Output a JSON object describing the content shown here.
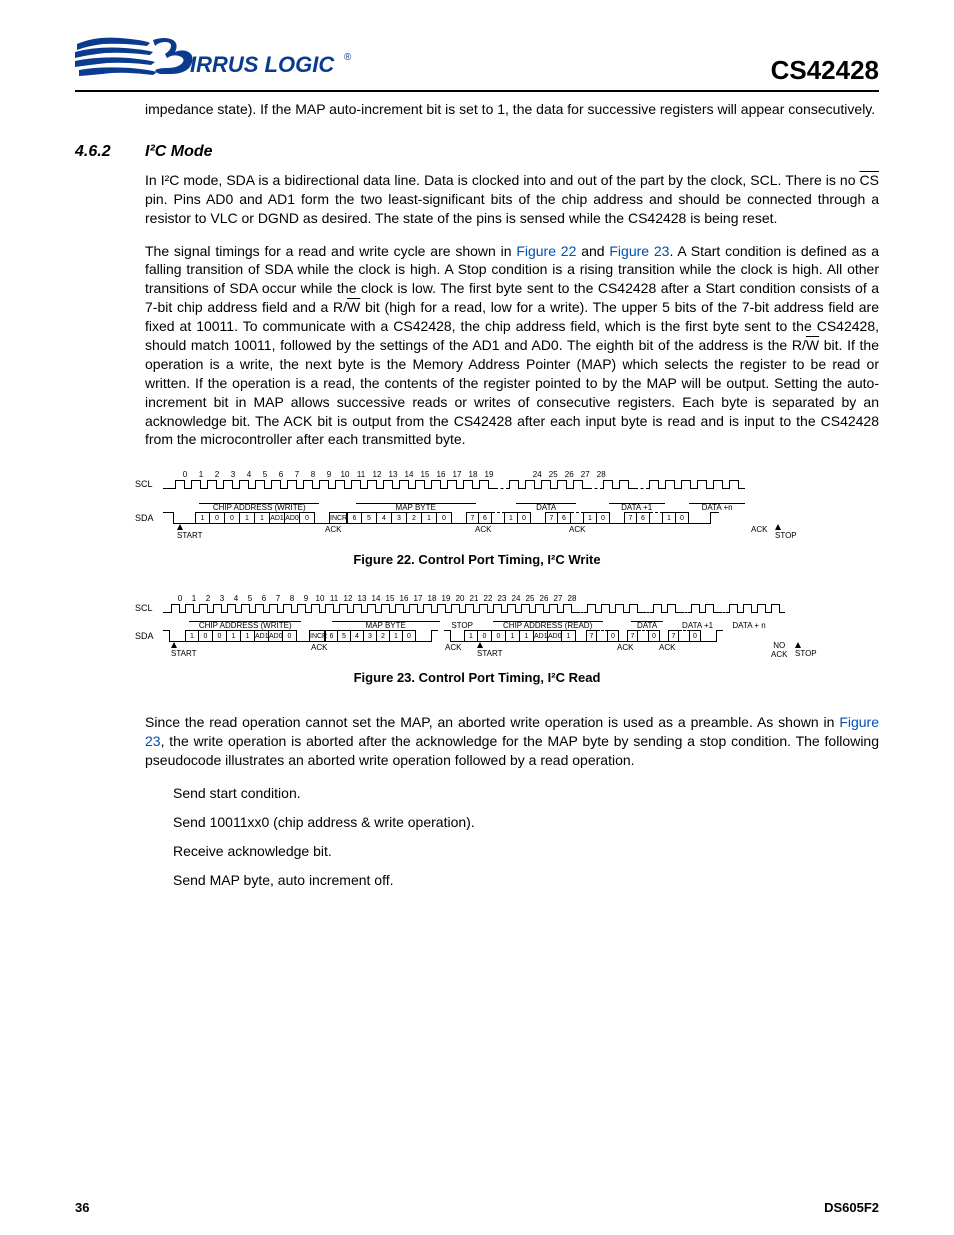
{
  "header": {
    "logo_text_1": "IRRUS LOGIC",
    "logo_reg": "®",
    "part": "CS42428"
  },
  "intro_continuation": "impedance state). If the MAP auto-increment bit is set to 1, the data for successive registers will appear consecutively.",
  "section": {
    "number": "4.6.2",
    "title": "I²C Mode"
  },
  "p1": {
    "t1": "In I²C mode, SDA is a bidirectional data line. Data is clocked into and out of the part by the clock, SCL. There is no ",
    "cs": "CS",
    "t2": " pin. Pins AD0 and AD1 form the two least-significant bits of the chip address and should be connected through a resistor to VLC or DGND as desired. The state of the pins is sensed while the CS42428 is being reset."
  },
  "p2": {
    "t1": "The signal timings for a read and write cycle are shown in ",
    "f22": "Figure 22",
    "and": " and ",
    "f23": "Figure 23",
    "t2": ". A Start condition is defined as a falling transition of SDA while the clock is high. A Stop condition is a rising transition while the clock is high. All other transitions of SDA occur while the clock is low. The first byte sent to the CS42428 after a Start condition consists of a 7-bit chip address field and a R/",
    "w1": "W",
    "t3": " bit (high for a read, low for a write). The upper 5 bits of the 7-bit address field are fixed at 10011. To communicate with a CS42428, the chip address field, which is the first byte sent to the CS42428, should match 10011, followed by the settings of the AD1 and AD0. The eighth bit of the address is the R/",
    "w2": "W",
    "t4": " bit. If the operation is a write, the next byte is the Memory Address Pointer (MAP) which selects the register to be read or written. If the operation is a read, the contents of the register pointed to by the MAP will be output. Setting the auto-increment bit in MAP allows successive reads or writes of consecutive registers. Each byte is separated by an acknowledge bit. The ACK bit is output from the CS42428 after each input byte is read and is input to the CS42428 from the microcontroller after each transmitted byte."
  },
  "fig22": {
    "caption": "Figure 22.  Control Port Timing, I²C Write",
    "ticks1": [
      "0",
      "1",
      "2",
      "3",
      "4",
      "5",
      "6",
      "7",
      "8",
      "9",
      "10",
      "11",
      "12",
      "13",
      "14",
      "15",
      "16",
      "17",
      "18",
      "19"
    ],
    "ticks2": [
      "24",
      "25",
      "26",
      "27",
      "28"
    ],
    "scl": "SCL",
    "sda": "SDA",
    "labels": {
      "chip_write": "CHIP ADDRESS (WRITE)",
      "map": "MAP BYTE",
      "data": "DATA",
      "d1": "DATA +1",
      "dn": "DATA +n"
    },
    "bits_addr": [
      "1",
      "0",
      "0",
      "1",
      "1",
      "AD1",
      "AD0",
      "0"
    ],
    "bits_map": [
      "INCR",
      "6",
      "5",
      "4",
      "3",
      "2",
      "1",
      "0"
    ],
    "bits_data": [
      "7",
      "6",
      "",
      "1",
      "0"
    ],
    "ack": "ACK",
    "start": "START",
    "stop": "STOP"
  },
  "fig23": {
    "caption": "Figure 23.  Control Port Timing, I²C Read",
    "ticks1": [
      "0",
      "1",
      "2",
      "3",
      "4",
      "5",
      "6",
      "7",
      "8",
      "9",
      "10",
      "11",
      "12",
      "13",
      "14",
      "15",
      "16",
      "17",
      "18",
      "19",
      "20",
      "21",
      "22",
      "23",
      "24",
      "25",
      "26",
      "27",
      "28"
    ],
    "scl": "SCL",
    "sda": "SDA",
    "labels": {
      "chip_write": "CHIP ADDRESS (WRITE)",
      "map": "MAP BYTE",
      "chip_read": "CHIP ADDRESS (READ)",
      "data": "DATA",
      "d1": "DATA +1",
      "dn": "DATA + n"
    },
    "bits_addr_w": [
      "1",
      "0",
      "0",
      "1",
      "1",
      "AD1",
      "AD0",
      "0"
    ],
    "bits_map": [
      "INCR",
      "6",
      "5",
      "4",
      "3",
      "2",
      "1",
      "0"
    ],
    "bits_addr_r": [
      "1",
      "0",
      "0",
      "1",
      "1",
      "AD1",
      "AD0",
      "1"
    ],
    "mini": [
      "7",
      "",
      "0"
    ],
    "ack": "ACK",
    "noack": "NO\nACK",
    "start": "START",
    "stop": "STOP"
  },
  "p3": {
    "t1": "Since the read operation cannot set the MAP, an aborted write operation is used as a preamble. As shown in ",
    "f23": "Figure 23",
    "t2": ", the write operation is aborted after the acknowledge for the MAP byte by sending a stop condition. The following pseudocode illustrates an aborted write operation followed by a read operation."
  },
  "pseudo": [
    "Send start condition.",
    "Send 10011xx0 (chip address & write operation).",
    "Receive acknowledge bit.",
    "Send MAP byte, auto increment off."
  ],
  "footer": {
    "page": "36",
    "doc": "DS605F2"
  },
  "colors": {
    "link": "#0050b0",
    "logo_blue": "#0a3b8f"
  }
}
